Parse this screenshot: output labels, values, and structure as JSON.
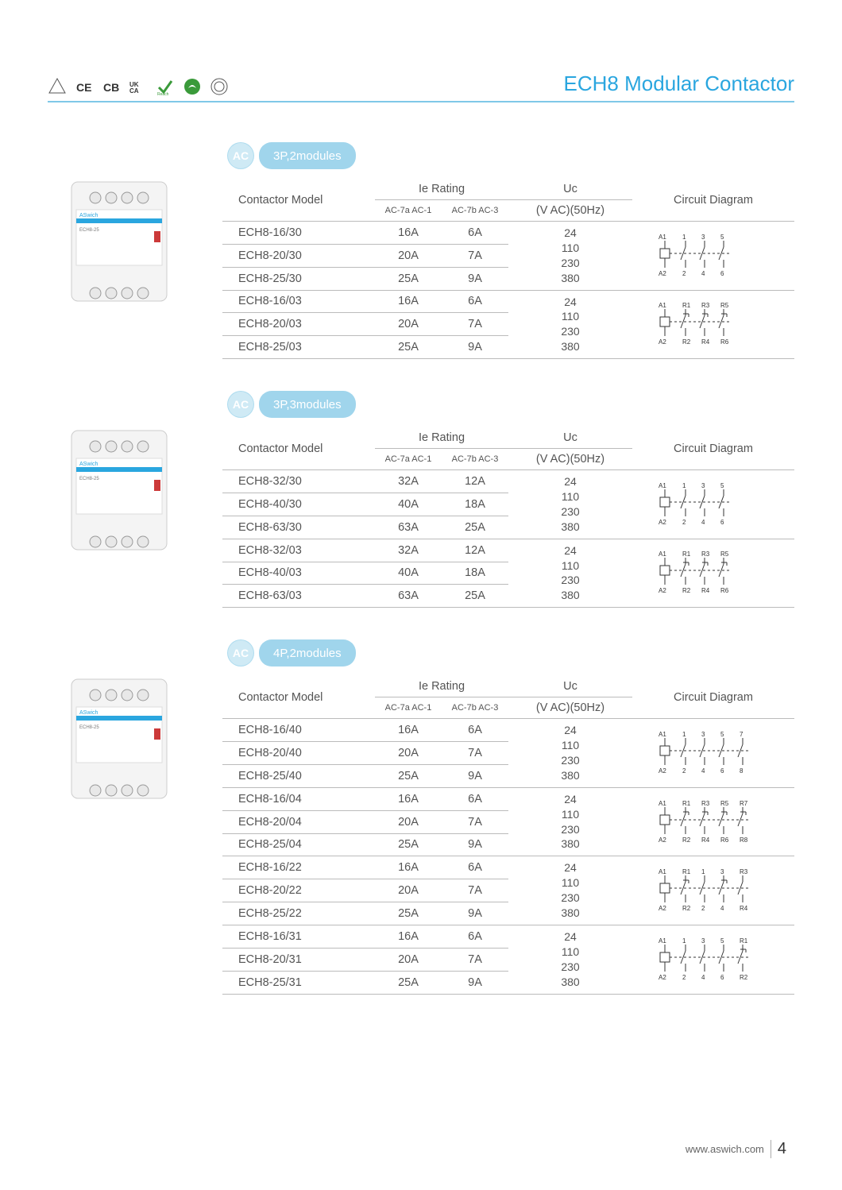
{
  "colors": {
    "accent": "#2aa6df",
    "badge": "#a0d5ec",
    "text": "#545454",
    "line": "#bbbbbb"
  },
  "page_title": "ECH8 Modular Contactor",
  "certifications": [
    "VDE",
    "CE",
    "CB",
    "UKCA",
    "Reach-check",
    "Leaf",
    "ISO"
  ],
  "footer": {
    "url": "www.aswich.com",
    "page": "4"
  },
  "table_headers": {
    "model": "Contactor Model",
    "ie": "Ie Rating",
    "ie_sub_a": "AC-7a\nAC-1",
    "ie_sub_b": "AC-7b\nAC-3",
    "uc_top": "Uc",
    "uc_sub": "(V AC)(50Hz)",
    "diag": "Circuit Diagram"
  },
  "uc_values": [
    "24",
    "110",
    "230",
    "380"
  ],
  "sections": [
    {
      "badge_ac": "AC",
      "badge_label": "3P,2modules",
      "groups": [
        {
          "diagram": "no3",
          "rows": [
            {
              "m": "ECH8-16/30",
              "a": "16A",
              "b": "6A"
            },
            {
              "m": "ECH8-20/30",
              "a": "20A",
              "b": "7A"
            },
            {
              "m": "ECH8-25/30",
              "a": "25A",
              "b": "9A"
            }
          ]
        },
        {
          "diagram": "nc3",
          "rows": [
            {
              "m": "ECH8-16/03",
              "a": "16A",
              "b": "6A"
            },
            {
              "m": "ECH8-20/03",
              "a": "20A",
              "b": "7A"
            },
            {
              "m": "ECH8-25/03",
              "a": "25A",
              "b": "9A"
            }
          ]
        }
      ]
    },
    {
      "badge_ac": "AC",
      "badge_label": "3P,3modules",
      "groups": [
        {
          "diagram": "no3",
          "rows": [
            {
              "m": "ECH8-32/30",
              "a": "32A",
              "b": "12A"
            },
            {
              "m": "ECH8-40/30",
              "a": "40A",
              "b": "18A"
            },
            {
              "m": "ECH8-63/30",
              "a": "63A",
              "b": "25A"
            }
          ]
        },
        {
          "diagram": "nc3",
          "rows": [
            {
              "m": "ECH8-32/03",
              "a": "32A",
              "b": "12A"
            },
            {
              "m": "ECH8-40/03",
              "a": "40A",
              "b": "18A"
            },
            {
              "m": "ECH8-63/03",
              "a": "63A",
              "b": "25A"
            }
          ]
        }
      ]
    },
    {
      "badge_ac": "AC",
      "badge_label": "4P,2modules",
      "groups": [
        {
          "diagram": "no4",
          "rows": [
            {
              "m": "ECH8-16/40",
              "a": "16A",
              "b": "6A"
            },
            {
              "m": "ECH8-20/40",
              "a": "20A",
              "b": "7A"
            },
            {
              "m": "ECH8-25/40",
              "a": "25A",
              "b": "9A"
            }
          ]
        },
        {
          "diagram": "nc4",
          "rows": [
            {
              "m": "ECH8-16/04",
              "a": "16A",
              "b": "6A"
            },
            {
              "m": "ECH8-20/04",
              "a": "20A",
              "b": "7A"
            },
            {
              "m": "ECH8-25/04",
              "a": "25A",
              "b": "9A"
            }
          ]
        },
        {
          "diagram": "mix22",
          "rows": [
            {
              "m": "ECH8-16/22",
              "a": "16A",
              "b": "6A"
            },
            {
              "m": "ECH8-20/22",
              "a": "20A",
              "b": "7A"
            },
            {
              "m": "ECH8-25/22",
              "a": "25A",
              "b": "9A"
            }
          ]
        },
        {
          "diagram": "mix31",
          "rows": [
            {
              "m": "ECH8-16/31",
              "a": "16A",
              "b": "6A"
            },
            {
              "m": "ECH8-20/31",
              "a": "20A",
              "b": "7A"
            },
            {
              "m": "ECH8-25/31",
              "a": "25A",
              "b": "9A"
            }
          ]
        }
      ]
    }
  ],
  "diagrams": {
    "no3": {
      "poles": 3,
      "types": [
        "no",
        "no",
        "no"
      ],
      "labels_top": [
        "A1",
        "1",
        "3",
        "5"
      ],
      "labels_bot": [
        "A2",
        "2",
        "4",
        "6"
      ]
    },
    "nc3": {
      "poles": 3,
      "types": [
        "nc",
        "nc",
        "nc"
      ],
      "labels_top": [
        "A1",
        "R1",
        "R3",
        "R5"
      ],
      "labels_bot": [
        "A2",
        "R2",
        "R4",
        "R6"
      ]
    },
    "no4": {
      "poles": 4,
      "types": [
        "no",
        "no",
        "no",
        "no"
      ],
      "labels_top": [
        "A1",
        "1",
        "3",
        "5",
        "7"
      ],
      "labels_bot": [
        "A2",
        "2",
        "4",
        "6",
        "8"
      ]
    },
    "nc4": {
      "poles": 4,
      "types": [
        "nc",
        "nc",
        "nc",
        "nc"
      ],
      "labels_top": [
        "A1",
        "R1",
        "R3",
        "R5",
        "R7"
      ],
      "labels_bot": [
        "A2",
        "R2",
        "R4",
        "R6",
        "R8"
      ]
    },
    "mix22": {
      "poles": 4,
      "types": [
        "nc",
        "no",
        "nc",
        "no"
      ],
      "labels_top": [
        "A1",
        "R1",
        "1",
        "3",
        "R3"
      ],
      "labels_bot": [
        "A2",
        "R2",
        "2",
        "4",
        "R4"
      ]
    },
    "mix31": {
      "poles": 4,
      "types": [
        "no",
        "no",
        "no",
        "nc"
      ],
      "labels_top": [
        "A1",
        "1",
        "3",
        "5",
        "R1"
      ],
      "labels_bot": [
        "A2",
        "2",
        "4",
        "6",
        "R2"
      ]
    }
  }
}
